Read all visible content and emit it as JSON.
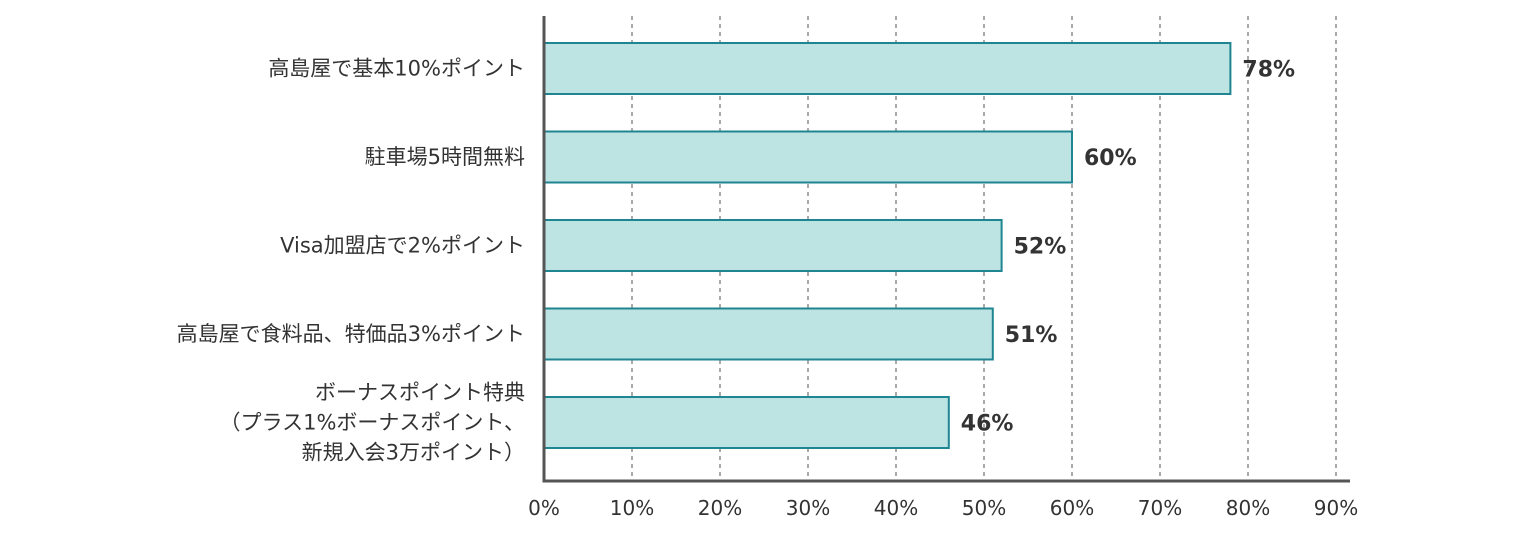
{
  "chart_data": {
    "type": "bar",
    "orientation": "horizontal",
    "categories": [
      [
        "高島屋で基本10%ポイント"
      ],
      [
        "駐車場5時間無料"
      ],
      [
        "Visa加盟店で2%ポイント"
      ],
      [
        "高島屋で食料品、特価品3%ポイント"
      ],
      [
        "ボーナスポイント特典",
        "（プラス1%ボーナスポイント、",
        "新規入会3万ポイント）"
      ]
    ],
    "values": [
      78,
      60,
      52,
      51,
      46
    ],
    "value_labels": [
      "78%",
      "60%",
      "52%",
      "51%",
      "46%"
    ],
    "xlim": [
      0,
      90
    ],
    "xticks": [
      0,
      10,
      20,
      30,
      40,
      50,
      60,
      70,
      80,
      90
    ],
    "xtick_labels": [
      "0%",
      "10%",
      "20%",
      "30%",
      "40%",
      "50%",
      "60%",
      "70%",
      "80%",
      "90%"
    ],
    "grid": "vertical dashed",
    "legend": "none",
    "colors": {
      "bar_fill": "#bde3e2",
      "bar_stroke": "#1f8591",
      "axis": "#555555",
      "text": "#333333"
    }
  }
}
